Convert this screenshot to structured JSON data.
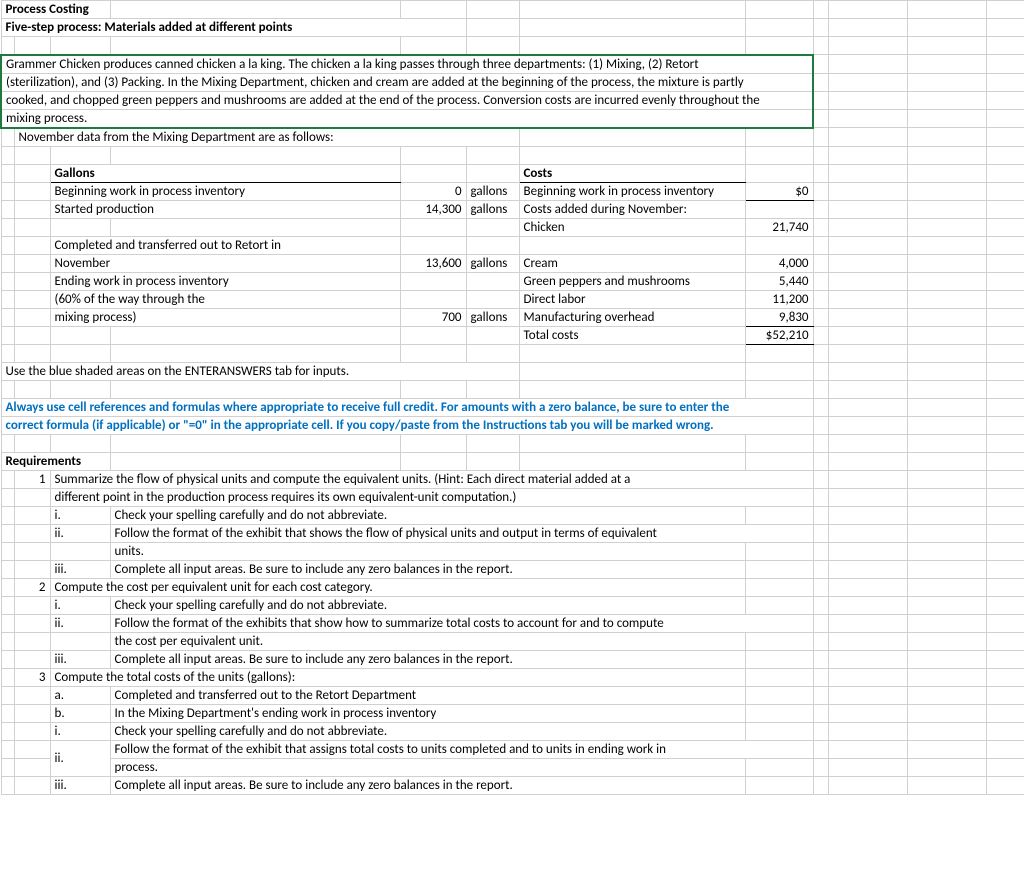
{
  "header": {
    "title": "Process Costing",
    "subtitle": "Five-step process: Materials added at different points"
  },
  "problem": {
    "l1": "Grammer Chicken produces canned chicken a la king. The chicken a la king passes through three departments: (1) Mixing, (2) Retort",
    "l2": "(sterilization), and (3) Packing. In the Mixing Department, chicken and cream are added at the beginning of the process, the mixture is partly",
    "l3": "cooked, and chopped green peppers and mushrooms are added at the end of the process. Conversion costs are incurred evenly throughout the",
    "l4": "mixing process."
  },
  "dataHeader": "November data from the Mixing Department are as follows:",
  "gallons": {
    "title": "Gallons",
    "r1": "Beginning work in process inventory",
    "r1v": "0",
    "r1u": "gallons",
    "r2": "Started production",
    "r2v": "14,300",
    "r2u": "gallons",
    "r3": "Completed and transferred out to Retort in",
    "r3b": "November",
    "r3v": "13,600",
    "r3u": "gallons",
    "r4": "Ending work in process inventory",
    "r5": "  (60% of the way through the",
    "r6": "  mixing process)",
    "r6v": "700",
    "r6u": "gallons"
  },
  "costs": {
    "title": "Costs",
    "r1": "Beginning work in process inventory",
    "r1v": "$0",
    "r2": "Costs added during November:",
    "r3": "  Chicken",
    "r3v": "21,740",
    "r4": "  Cream",
    "r4v": "4,000",
    "r5": "  Green peppers and mushrooms",
    "r5v": "5,440",
    "r6": "  Direct labor",
    "r6v": "11,200",
    "r7": "  Manufacturing overhead",
    "r7v": "9,830",
    "r8": "Total costs",
    "r8v": "$52,210"
  },
  "note1": "Use the blue shaded areas on the ENTERANSWERS tab for inputs.",
  "note2a": "Always use cell references and formulas where appropriate to receive full credit. For amounts with a zero balance, be sure to enter the",
  "note2b": "correct formula (if applicable) or \"=0\" in the appropriate cell. If you copy/paste from the Instructions tab you will be marked wrong.",
  "req": {
    "title": "Requirements",
    "r1n": "1",
    "r1a": "Summarize the flow of physical units and compute the equivalent units. (Hint: Each direct material added at a",
    "r1b": "different point in the production process requires its own equivalent-unit computation.)",
    "r1i": "i.",
    "r1it": "Check your spelling carefully and do not abbreviate.",
    "r1ii": "ii.",
    "r1iia": "Follow the format of the exhibit that shows the flow of physical units and output in terms of equivalent",
    "r1iib": "units.",
    "r1iii": "iii.",
    "r1iiit": "Complete all input areas. Be sure to include any zero balances in the report.",
    "r2n": "2",
    "r2a": "Compute the cost per equivalent unit for each cost category.",
    "r2i": "i.",
    "r2it": "Check your spelling carefully and do not abbreviate.",
    "r2ii": "ii.",
    "r2iia": "Follow the format of the exhibits that show how to summarize total costs to account for and to compute",
    "r2iib": "the cost per equivalent unit.",
    "r2iii": "iii.",
    "r2iiit": "Complete all input areas. Be sure to include any zero balances in the report.",
    "r3n": "3",
    "r3a": "Compute the total costs of the units (gallons):",
    "r3an": "a.",
    "r3at": "Completed and transferred out to the Retort Department",
    "r3bn": "b.",
    "r3bt": "In the Mixing Department's ending work in process inventory",
    "r3i": "i.",
    "r3it": "Check your spelling carefully and do not abbreviate.",
    "r3ii": "ii.",
    "r3iia": "Follow the format of the exhibit that assigns total costs to units completed and to units in ending work in",
    "r3iib": "process.",
    "r3iii": "iii.",
    "r3iiit": "Complete all input areas. Be sure to include any zero balances in the report."
  }
}
